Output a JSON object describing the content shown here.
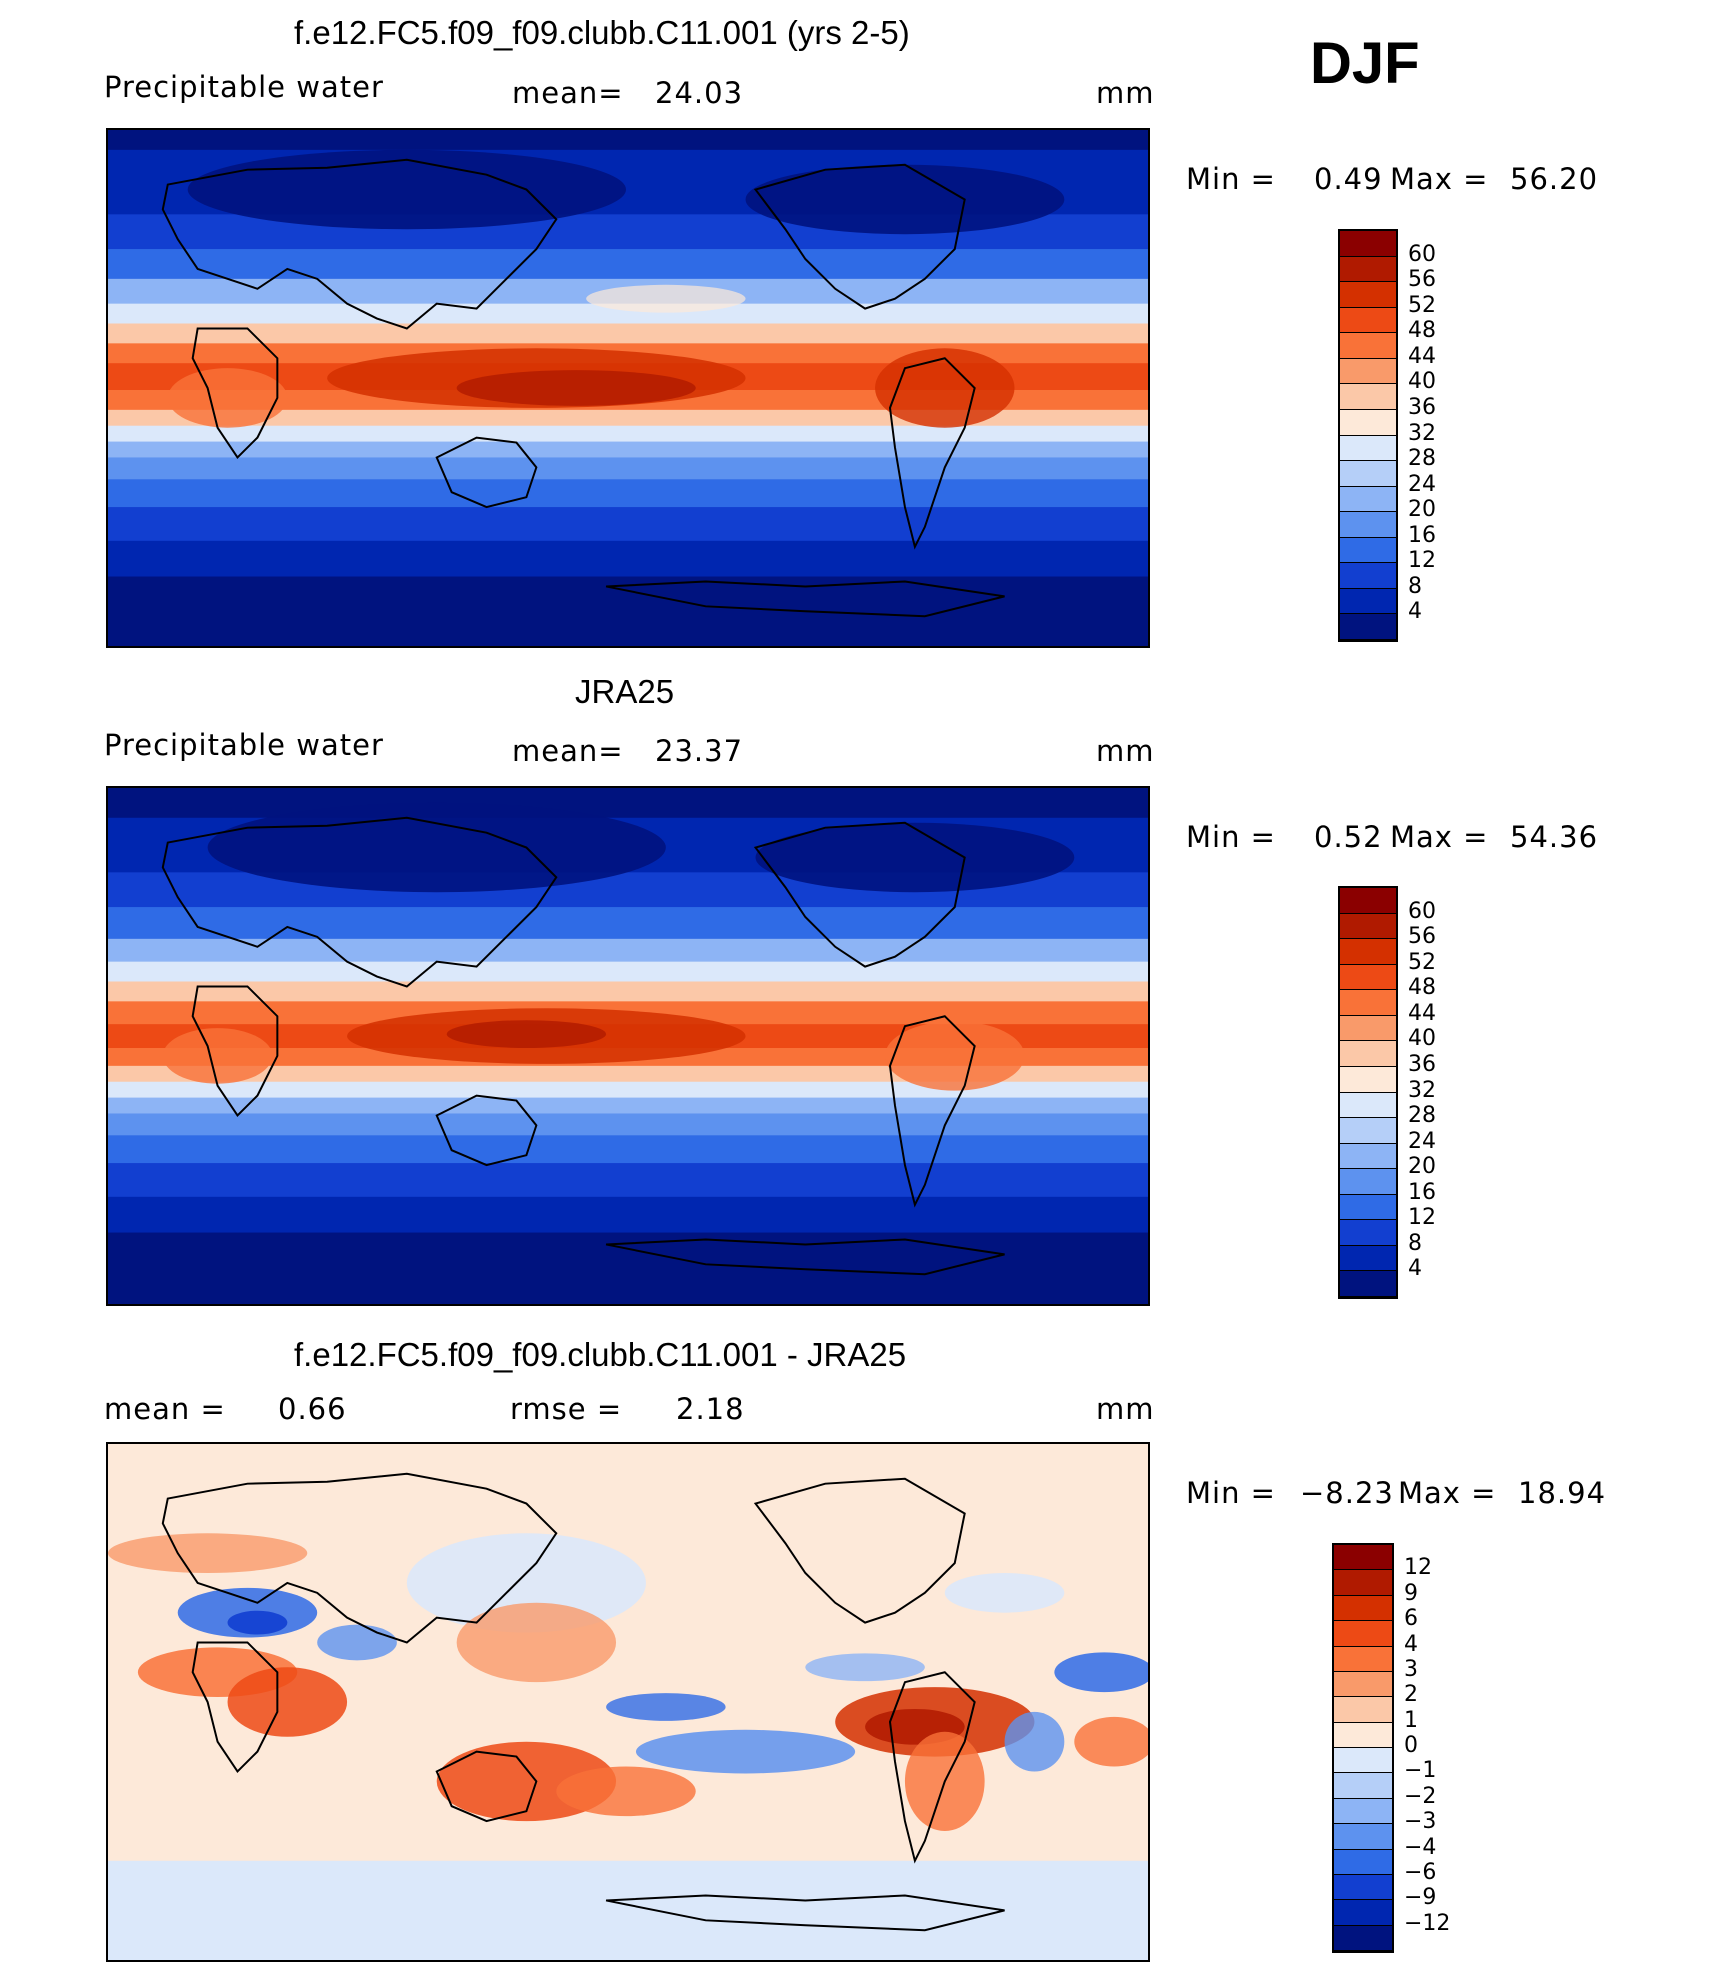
{
  "season": "DJF",
  "panels": [
    {
      "title": "f.e12.FC5.f09_f09.clubb.C11.001 (yrs 2-5)",
      "variable": "Precipitable water",
      "stat1_label": "mean=",
      "stat1_value": "24.03",
      "stat2_label": "",
      "stat2_value": "",
      "units": "mm",
      "minmax": {
        "min_label": "Min =",
        "min": "0.49",
        "max_label": "Max =",
        "max": "56.20"
      },
      "colorbar": {
        "labels": [
          "60",
          "56",
          "52",
          "48",
          "44",
          "40",
          "36",
          "32",
          "28",
          "24",
          "20",
          "16",
          "12",
          "8",
          "4"
        ],
        "colors": [
          "#8b0000",
          "#b01a00",
          "#d43000",
          "#ed4a15",
          "#f97238",
          "#f99a6a",
          "#fbc8a8",
          "#fde9d9",
          "#dbe8fa",
          "#b5cff8",
          "#8db4f5",
          "#5d92ef",
          "#2f6be6",
          "#123fd0",
          "#0026b0",
          "#00137f"
        ]
      }
    },
    {
      "title": "JRA25",
      "variable": "Precipitable water",
      "stat1_label": "mean=",
      "stat1_value": "23.37",
      "stat2_label": "",
      "stat2_value": "",
      "units": "mm",
      "minmax": {
        "min_label": "Min =",
        "min": "0.52",
        "max_label": "Max =",
        "max": "54.36"
      },
      "colorbar": {
        "labels": [
          "60",
          "56",
          "52",
          "48",
          "44",
          "40",
          "36",
          "32",
          "28",
          "24",
          "20",
          "16",
          "12",
          "8",
          "4"
        ],
        "colors": [
          "#8b0000",
          "#b01a00",
          "#d43000",
          "#ed4a15",
          "#f97238",
          "#f99a6a",
          "#fbc8a8",
          "#fde9d9",
          "#dbe8fa",
          "#b5cff8",
          "#8db4f5",
          "#5d92ef",
          "#2f6be6",
          "#123fd0",
          "#0026b0",
          "#00137f"
        ]
      }
    },
    {
      "title": "f.e12.FC5.f09_f09.clubb.C11.001 - JRA25",
      "variable": "",
      "stat1_label": "mean =",
      "stat1_value": "0.66",
      "stat2_label": "rmse =",
      "stat2_value": "2.18",
      "units": "mm",
      "minmax": {
        "min_label": "Min =",
        "min": "−8.23",
        "max_label": "Max =",
        "max": "18.94"
      },
      "colorbar": {
        "labels": [
          "12",
          "9",
          "6",
          "4",
          "3",
          "2",
          "1",
          "0",
          "−1",
          "−2",
          "−3",
          "−4",
          "−6",
          "−9",
          "−12"
        ],
        "colors": [
          "#8b0000",
          "#b01a00",
          "#d43000",
          "#ed4a15",
          "#f97238",
          "#f99a6a",
          "#fbc8a8",
          "#fde9d9",
          "#dbe8fa",
          "#b5cff8",
          "#8db4f5",
          "#5d92ef",
          "#2f6be6",
          "#123fd0",
          "#0026b0",
          "#00137f"
        ]
      }
    }
  ]
}
